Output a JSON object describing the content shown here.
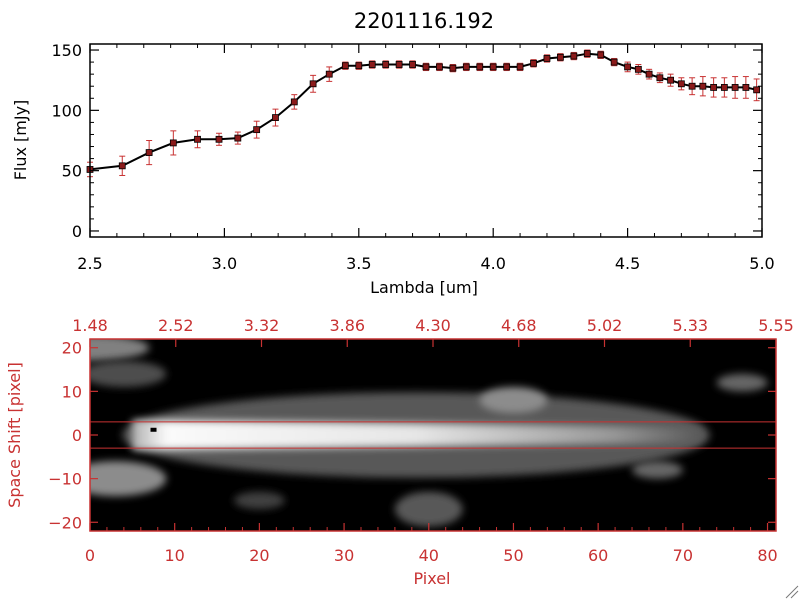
{
  "colors": {
    "background": "#ffffff",
    "axis_black": "#000000",
    "accent_red": "#c83232",
    "image_background": "#000000"
  },
  "chart_data": [
    {
      "type": "line",
      "title": "2201116.192",
      "xlabel": "Lambda [um]",
      "ylabel": "Flux [mJy]",
      "xlim": [
        2.5,
        5.0
      ],
      "ylim": [
        -5,
        155
      ],
      "x_ticks": [
        "2.5",
        "3.0",
        "3.5",
        "4.0",
        "4.5",
        "5.0"
      ],
      "y_ticks": [
        "0",
        "50",
        "100",
        "150"
      ],
      "x_tick_values": [
        2.5,
        3.0,
        3.5,
        4.0,
        4.5,
        5.0
      ],
      "y_tick_values": [
        0,
        50,
        100,
        150
      ],
      "grid": false,
      "line_color": "#000000",
      "marker": "square",
      "marker_color": "#8b1a1a",
      "error_bar_color": "#c83232",
      "series": [
        {
          "x": [
            2.5,
            2.62,
            2.72,
            2.81,
            2.9,
            2.98,
            3.05,
            3.12,
            3.19,
            3.26,
            3.33,
            3.39,
            3.45,
            3.5,
            3.55,
            3.6,
            3.65,
            3.7,
            3.75,
            3.8,
            3.85,
            3.9,
            3.95,
            4.0,
            4.05,
            4.1,
            4.15,
            4.2,
            4.25,
            4.3,
            4.35,
            4.4,
            4.45,
            4.5,
            4.54,
            4.58,
            4.62,
            4.66,
            4.7,
            4.74,
            4.78,
            4.82,
            4.86,
            4.9,
            4.94,
            4.98
          ],
          "y": [
            51,
            54,
            65,
            73,
            76,
            76,
            77,
            84,
            94,
            107,
            122,
            130,
            137,
            137,
            138,
            138,
            138,
            138,
            136,
            136,
            135,
            136,
            136,
            136,
            136,
            136,
            139,
            143,
            144,
            145,
            147,
            146,
            140,
            136,
            134,
            130,
            127,
            125,
            122,
            120,
            120,
            119,
            119,
            119,
            119,
            117
          ],
          "err": [
            6,
            8,
            10,
            10,
            7,
            5,
            5,
            7,
            7,
            6,
            7,
            6,
            3,
            3,
            3,
            3,
            3,
            3,
            3,
            3,
            3,
            3,
            3,
            3,
            3,
            3,
            3,
            3,
            3,
            3,
            3,
            3,
            3,
            4,
            4,
            4,
            4,
            5,
            5,
            7,
            8,
            8,
            8,
            9,
            9,
            9
          ]
        }
      ]
    },
    {
      "type": "heatmap",
      "xlabel": "Pixel",
      "ylabel": "Space Shift [pixel]",
      "xlim": [
        0,
        81
      ],
      "ylim": [
        -22,
        22
      ],
      "x_ticks": [
        "0",
        "10",
        "20",
        "30",
        "40",
        "50",
        "60",
        "70",
        "80"
      ],
      "x_tick_values": [
        0,
        10,
        20,
        30,
        40,
        50,
        60,
        70,
        80
      ],
      "y_ticks": [
        "−20",
        "−10",
        "0",
        "10",
        "20"
      ],
      "y_tick_values": [
        -20,
        -10,
        0,
        10,
        20
      ],
      "top_axis_ticks": [
        "1.48",
        "2.52",
        "3.32",
        "3.86",
        "4.30",
        "4.68",
        "5.02",
        "5.33",
        "5.55"
      ],
      "extraction_aperture": [
        -3,
        3
      ],
      "colormap": "grayscale",
      "features": [
        {
          "kind": "trace",
          "x_start": 5,
          "x_end": 72,
          "y_center": 0,
          "width": 3.5,
          "peak_brightness": 0.98,
          "end_brightness": 0.35
        },
        {
          "kind": "blob",
          "x": 0,
          "y": 20,
          "rx": 7,
          "ry": 3,
          "brightness": 0.5
        },
        {
          "kind": "blob",
          "x": 4,
          "y": 14,
          "rx": 5,
          "ry": 3,
          "brightness": 0.3
        },
        {
          "kind": "blob",
          "x": 3,
          "y": -10,
          "rx": 6,
          "ry": 4,
          "brightness": 0.55
        },
        {
          "kind": "blob",
          "x": 20,
          "y": -15,
          "rx": 3,
          "ry": 2,
          "brightness": 0.25
        },
        {
          "kind": "blob",
          "x": 40,
          "y": -17,
          "rx": 4,
          "ry": 4,
          "brightness": 0.35
        },
        {
          "kind": "blob",
          "x": 50,
          "y": 8,
          "rx": 4,
          "ry": 3,
          "brightness": 0.55
        },
        {
          "kind": "blob",
          "x": 67,
          "y": -8,
          "rx": 3,
          "ry": 2,
          "brightness": 0.4
        },
        {
          "kind": "blob",
          "x": 77,
          "y": 12,
          "rx": 3,
          "ry": 2,
          "brightness": 0.4
        },
        {
          "kind": "marker",
          "x": 7.5,
          "y": 1.2,
          "color": "#000000"
        }
      ]
    }
  ]
}
